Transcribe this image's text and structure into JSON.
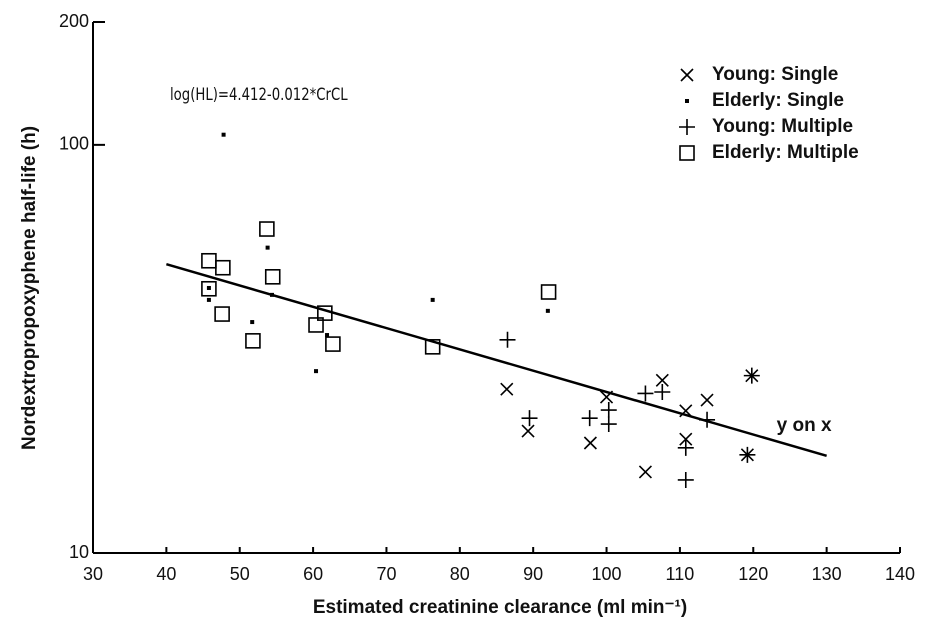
{
  "chart_data": {
    "type": "scatter",
    "xlabel": "Estimated creatinine clearance (ml min⁻¹)",
    "ylabel": "Nordextropropoxyphene half-life (h)",
    "annotation": "log(HL)=4.412-0.012*CrCL",
    "xlim": [
      30,
      140
    ],
    "xticks": [
      30,
      40,
      50,
      60,
      70,
      80,
      90,
      100,
      110,
      120,
      130,
      140
    ],
    "ylim": [
      10,
      200
    ],
    "yticks": [
      10,
      100,
      200
    ],
    "log_y": true,
    "legend": "top-right",
    "series": [
      {
        "name": "Young: Single",
        "color": "#000000",
        "marker": "x",
        "x": [
          86.4,
          89.3,
          97.8,
          100,
          105.3,
          107.6,
          110.8,
          110.8,
          113.7,
          119.8,
          119.2
        ],
        "values": [
          25.2,
          19.9,
          18.6,
          24.1,
          15.8,
          26.5,
          22.3,
          19,
          23.7,
          27.2,
          17.4
        ]
      },
      {
        "name": "Elderly: Single",
        "color": "#000000",
        "marker": "dot",
        "x": [
          47.8,
          53.8,
          45.8,
          45.8,
          54.4,
          51.7,
          60.4,
          61.9,
          76.3,
          92
        ],
        "values": [
          105.9,
          56,
          44.6,
          41.7,
          42.9,
          36.8,
          27.9,
          34.2,
          41.7,
          39.2
        ]
      },
      {
        "name": "Young: Multiple",
        "color": "#000000",
        "marker": "plus",
        "x": [
          86.5,
          89.5,
          97.7,
          100.3,
          100.3,
          105.3,
          107.6,
          110.8,
          110.8,
          113.7,
          119.8,
          119.2
        ],
        "values": [
          33.3,
          21.4,
          21.4,
          22.4,
          20.7,
          24.6,
          24.8,
          18.1,
          15.1,
          21.2,
          27.2,
          17.4
        ]
      },
      {
        "name": "Elderly: Multiple",
        "color": "#000000",
        "marker": "square",
        "x": [
          45.8,
          47.7,
          45.8,
          47.6,
          53.7,
          54.5,
          51.8,
          61.6,
          60.4,
          62.7,
          76.3,
          92.1
        ],
        "values": [
          52,
          50,
          44.4,
          38.5,
          62.2,
          47.5,
          33.1,
          38.7,
          36.2,
          32.5,
          32,
          43.6
        ]
      },
      {
        "name": "y on x",
        "color": "#000000",
        "marker": "line",
        "x": [
          40,
          130
        ],
        "values": [
          51,
          17.3
        ]
      }
    ]
  }
}
